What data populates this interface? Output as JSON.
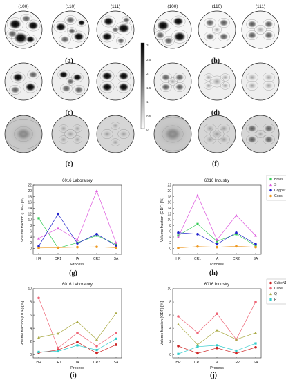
{
  "pole_figures": {
    "headers": [
      "(100)",
      "(110)",
      "(111)"
    ],
    "panel_labels": [
      "(a)",
      "(b)",
      "(c)",
      "(d)",
      "(e)",
      "(f)"
    ],
    "colorbar_ticks": [
      "3",
      "2.5",
      "2",
      "1.5",
      "1",
      "0.5",
      "0"
    ]
  },
  "chart_labels": [
    "(g)",
    "(h)",
    "(i)",
    "(j)"
  ],
  "chart_data": [
    {
      "type": "line",
      "title": "6016 Laboratory",
      "xlabel": "Process",
      "ylabel": "Volume fraction (ODF) [%]",
      "categories": [
        "HR",
        "CR1",
        "IA",
        "CR2",
        "SA"
      ],
      "ylim": [
        -2,
        22
      ],
      "yticks": [
        0,
        2,
        4,
        6,
        8,
        10,
        12,
        14,
        16,
        18,
        20,
        22
      ],
      "series": [
        {
          "name": "Brass",
          "color": "#33cc55",
          "marker": "square",
          "values": [
            10.5,
            0.2,
            2.0,
            4.5,
            1.5
          ]
        },
        {
          "name": "S",
          "color": "#dd55dd",
          "marker": "triangle",
          "values": [
            3.5,
            7.0,
            3.0,
            20.0,
            2.0
          ]
        },
        {
          "name": "Copper",
          "color": "#2222cc",
          "marker": "circle",
          "values": [
            0.8,
            12.0,
            1.8,
            5.0,
            1.0
          ]
        },
        {
          "name": "Goss",
          "color": "#ee9922",
          "marker": "circle",
          "values": [
            0.2,
            0.3,
            0.5,
            0.6,
            0.3
          ]
        }
      ],
      "legend_position": "none"
    },
    {
      "type": "line",
      "title": "6016 Industry",
      "xlabel": "Process",
      "ylabel": "Volume fraction (ODF) [%]",
      "categories": [
        "HR",
        "CR1",
        "IA",
        "CR2",
        "SA"
      ],
      "ylim": [
        -2,
        22
      ],
      "yticks": [
        0,
        2,
        4,
        6,
        8,
        10,
        12,
        14,
        16,
        18,
        20,
        22
      ],
      "series": [
        {
          "name": "Brass",
          "color": "#33cc55",
          "marker": "square",
          "values": [
            4.5,
            8.5,
            2.5,
            5.0,
            1.0
          ]
        },
        {
          "name": "S",
          "color": "#dd55dd",
          "marker": "triangle",
          "values": [
            4.0,
            18.5,
            3.0,
            11.5,
            4.5
          ]
        },
        {
          "name": "Copper",
          "color": "#2222cc",
          "marker": "circle",
          "values": [
            5.5,
            5.0,
            1.5,
            5.5,
            1.5
          ]
        },
        {
          "name": "Goss",
          "color": "#ee9922",
          "marker": "circle",
          "values": [
            0.2,
            0.7,
            0.5,
            0.8,
            0.5
          ]
        }
      ],
      "legend_position": "top-right"
    },
    {
      "type": "line",
      "title": "6016 Laboratory",
      "xlabel": "Process",
      "ylabel": "Volume fraction (ODF) [%]",
      "categories": [
        "HR",
        "CR1",
        "IA",
        "CR2",
        "SA"
      ],
      "ylim": [
        -0.5,
        10
      ],
      "yticks": [
        0,
        2,
        4,
        6,
        8,
        10
      ],
      "series": [
        {
          "name": "CubeND",
          "color": "#cc2222",
          "marker": "circle",
          "values": [
            0.3,
            0.7,
            1.9,
            0.2,
            1.5
          ]
        },
        {
          "name": "Cube",
          "color": "#ee6677",
          "marker": "circle",
          "values": [
            8.6,
            1.0,
            3.3,
            1.3,
            3.3
          ]
        },
        {
          "name": "Q",
          "color": "#aaaa44",
          "marker": "triangle",
          "values": [
            2.6,
            3.2,
            5.0,
            2.3,
            6.3
          ]
        },
        {
          "name": "P",
          "color": "#33cccc",
          "marker": "square",
          "values": [
            0.4,
            0.5,
            1.4,
            0.7,
            2.4
          ]
        }
      ],
      "legend_position": "none"
    },
    {
      "type": "line",
      "title": "6016 Industry",
      "xlabel": "Process",
      "ylabel": "Volume fraction (ODF) [%]",
      "categories": [
        "HR",
        "CR1",
        "IA",
        "CR2",
        "SA"
      ],
      "ylim": [
        -0.5,
        10
      ],
      "yticks": [
        0,
        2,
        4,
        6,
        8,
        10
      ],
      "series": [
        {
          "name": "CubeND",
          "color": "#cc2222",
          "marker": "circle",
          "values": [
            1.3,
            0.2,
            1.0,
            0.2,
            1.1
          ]
        },
        {
          "name": "Cube",
          "color": "#ee6677",
          "marker": "circle",
          "values": [
            5.8,
            3.3,
            6.2,
            2.3,
            8.0
          ]
        },
        {
          "name": "Q",
          "color": "#aaaa44",
          "marker": "triangle",
          "values": [
            4.6,
            1.5,
            3.7,
            2.3,
            3.3
          ]
        },
        {
          "name": "P",
          "color": "#33cccc",
          "marker": "square",
          "values": [
            0.1,
            1.2,
            1.4,
            0.6,
            1.7
          ]
        }
      ],
      "legend_position": "top-right"
    }
  ]
}
